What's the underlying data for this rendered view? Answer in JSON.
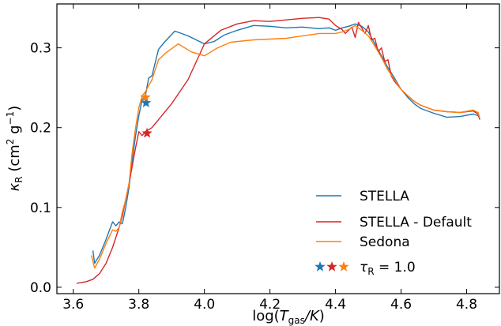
{
  "chart_data": {
    "type": "line",
    "xlabel_main": "log(",
    "xlabel_var": "T",
    "xlabel_sub": "gas",
    "xlabel_tail": "/K)",
    "ylabel_sym": "κ",
    "ylabel_sub": "R",
    "ylabel_units": "(cm",
    "ylabel_sup1": "2",
    "ylabel_mid": " g",
    "ylabel_sup2": "−1",
    "ylabel_end": ")",
    "xlim": [
      3.55,
      4.9
    ],
    "ylim": [
      -0.008,
      0.355
    ],
    "xticks": [
      3.6,
      3.8,
      4.0,
      4.2,
      4.4,
      4.6,
      4.8
    ],
    "xtick_labels": [
      "3.6",
      "3.8",
      "4.0",
      "4.2",
      "4.4",
      "4.6",
      "4.8"
    ],
    "yticks": [
      0.0,
      0.1,
      0.2,
      0.3
    ],
    "ytick_labels": [
      "0.0",
      "0.1",
      "0.2",
      "0.3"
    ],
    "legend_position": "lower-right",
    "series": [
      {
        "name": "STELLA",
        "color": "#1f77b4",
        "x": [
          3.66,
          3.665,
          3.68,
          3.7,
          3.72,
          3.73,
          3.74,
          3.745,
          3.75,
          3.76,
          3.77,
          3.78,
          3.79,
          3.8,
          3.81,
          3.82,
          3.83,
          3.84,
          3.86,
          3.88,
          3.91,
          3.95,
          4.0,
          4.03,
          4.06,
          4.1,
          4.15,
          4.2,
          4.25,
          4.3,
          4.35,
          4.38,
          4.4,
          4.42,
          4.44,
          4.46,
          4.48,
          4.5,
          4.52,
          4.54,
          4.56,
          4.58,
          4.6,
          4.62,
          4.64,
          4.66,
          4.7,
          4.74,
          4.78,
          4.82,
          4.835,
          4.84
        ],
        "y": [
          0.046,
          0.03,
          0.04,
          0.06,
          0.082,
          0.077,
          0.082,
          0.08,
          0.08,
          0.1,
          0.125,
          0.16,
          0.19,
          0.215,
          0.235,
          0.24,
          0.262,
          0.265,
          0.298,
          0.308,
          0.321,
          0.315,
          0.305,
          0.308,
          0.316,
          0.322,
          0.328,
          0.327,
          0.325,
          0.326,
          0.324,
          0.325,
          0.322,
          0.325,
          0.327,
          0.33,
          0.327,
          0.32,
          0.305,
          0.29,
          0.275,
          0.262,
          0.248,
          0.238,
          0.23,
          0.224,
          0.218,
          0.213,
          0.214,
          0.217,
          0.215,
          0.212
        ]
      },
      {
        "name": "STELLA - Default",
        "color": "#d62728",
        "x": [
          3.61,
          3.64,
          3.66,
          3.68,
          3.7,
          3.72,
          3.74,
          3.75,
          3.77,
          3.79,
          3.8,
          3.81,
          3.82,
          3.84,
          3.86,
          3.9,
          3.95,
          4.0,
          4.05,
          4.1,
          4.15,
          4.2,
          4.25,
          4.3,
          4.35,
          4.38,
          4.4,
          4.42,
          4.43,
          4.45,
          4.46,
          4.47,
          4.49,
          4.5,
          4.51,
          4.52,
          4.53,
          4.54,
          4.55,
          4.56,
          4.57,
          4.58,
          4.6,
          4.62,
          4.64,
          4.66,
          4.7,
          4.74,
          4.78,
          4.82,
          4.835,
          4.84
        ],
        "y": [
          0.005,
          0.007,
          0.01,
          0.017,
          0.03,
          0.05,
          0.075,
          0.09,
          0.13,
          0.175,
          0.195,
          0.19,
          0.195,
          0.2,
          0.21,
          0.23,
          0.26,
          0.305,
          0.322,
          0.33,
          0.334,
          0.333,
          0.335,
          0.337,
          0.338,
          0.336,
          0.328,
          0.323,
          0.318,
          0.326,
          0.313,
          0.332,
          0.318,
          0.328,
          0.31,
          0.312,
          0.295,
          0.3,
          0.283,
          0.285,
          0.265,
          0.258,
          0.248,
          0.24,
          0.233,
          0.228,
          0.222,
          0.22,
          0.219,
          0.221,
          0.217,
          0.21
        ]
      },
      {
        "name": "Sedona",
        "color": "#ff7f0e",
        "x": [
          3.655,
          3.665,
          3.68,
          3.7,
          3.72,
          3.73,
          3.74,
          3.75,
          3.76,
          3.77,
          3.78,
          3.79,
          3.8,
          3.81,
          3.82,
          3.84,
          3.86,
          3.88,
          3.92,
          3.96,
          4.0,
          4.04,
          4.08,
          4.15,
          4.2,
          4.25,
          4.3,
          4.35,
          4.4,
          4.42,
          4.44,
          4.46,
          4.48,
          4.5,
          4.52,
          4.54,
          4.56,
          4.58,
          4.6,
          4.62,
          4.64,
          4.66,
          4.7,
          4.74,
          4.78,
          4.82,
          4.835,
          4.84
        ],
        "y": [
          0.04,
          0.024,
          0.035,
          0.055,
          0.072,
          0.07,
          0.075,
          0.095,
          0.11,
          0.13,
          0.17,
          0.2,
          0.225,
          0.24,
          0.245,
          0.26,
          0.285,
          0.293,
          0.305,
          0.295,
          0.29,
          0.3,
          0.307,
          0.31,
          0.311,
          0.312,
          0.315,
          0.318,
          0.318,
          0.32,
          0.323,
          0.328,
          0.322,
          0.315,
          0.302,
          0.288,
          0.272,
          0.26,
          0.248,
          0.24,
          0.233,
          0.228,
          0.222,
          0.22,
          0.219,
          0.222,
          0.219,
          0.212
        ]
      }
    ],
    "markers": [
      {
        "series": "STELLA",
        "color": "#1f77b4",
        "x": 3.822,
        "y": 0.231
      },
      {
        "series": "STELLA - Default",
        "color": "#d62728",
        "x": 3.825,
        "y": 0.193
      },
      {
        "series": "Sedona",
        "color": "#ff7f0e",
        "x": 3.82,
        "y": 0.238
      }
    ],
    "legend": {
      "entries": [
        "STELLA",
        "STELLA - Default",
        "Sedona"
      ],
      "marker_label_sym": "τ",
      "marker_label_sub": "R",
      "marker_label_tail": " = 1.0"
    }
  }
}
